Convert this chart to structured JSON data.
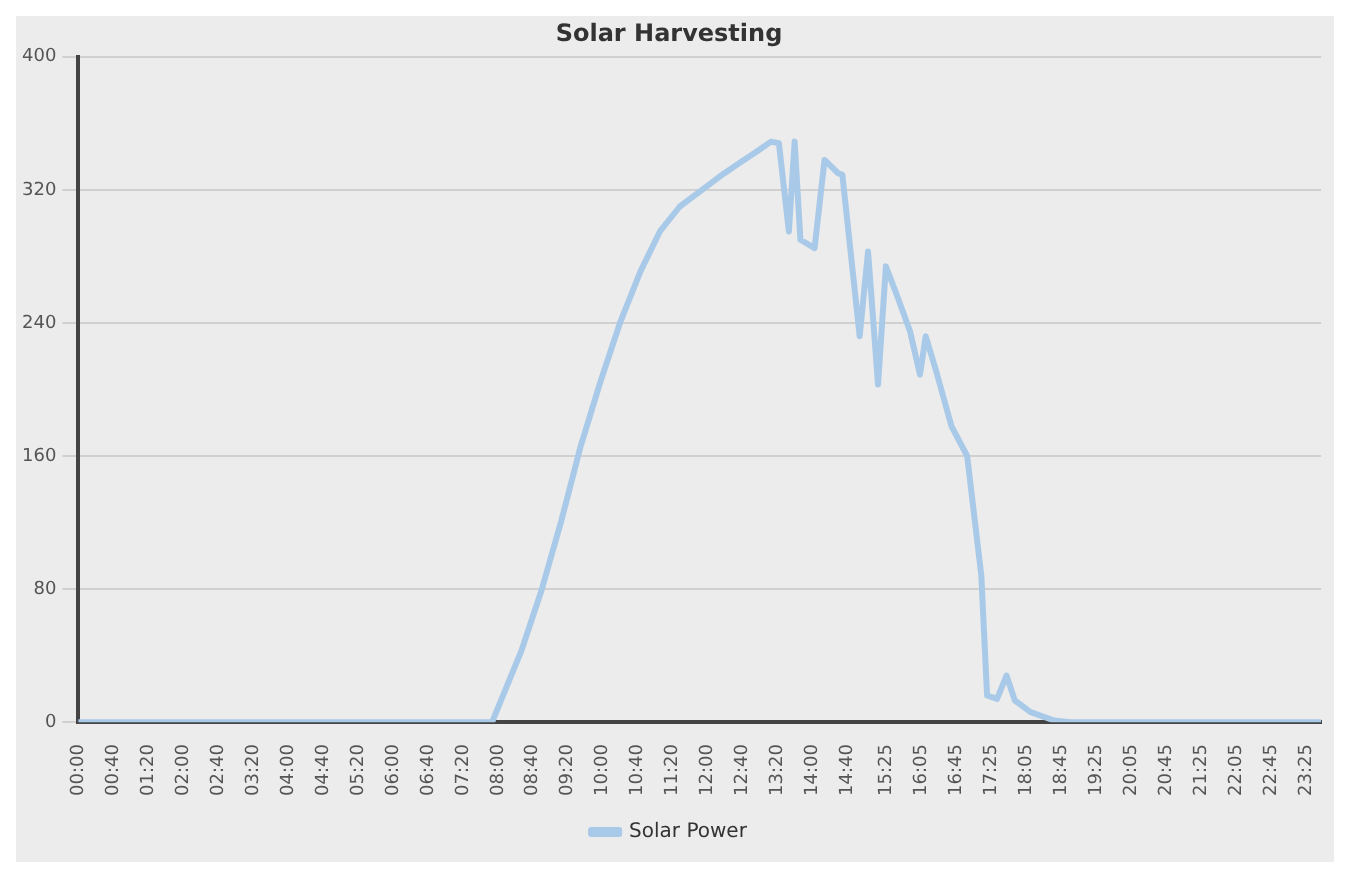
{
  "chart_data": {
    "type": "line",
    "title": "Solar Harvesting",
    "series": [
      {
        "name": "Solar Power",
        "color": "#a9c9e8",
        "x": [
          0,
          7.89,
          8.45,
          8.83,
          9.21,
          9.58,
          9.96,
          10.34,
          10.72,
          11.09,
          11.47,
          11.85,
          12.23,
          12.6,
          12.98,
          13.21,
          13.36,
          13.55,
          13.66,
          13.77,
          14.04,
          14.23,
          14.49,
          14.57,
          14.9,
          15.06,
          15.25,
          15.4,
          15.63,
          15.86,
          16.05,
          16.16,
          16.35,
          16.65,
          16.95,
          17.22,
          17.33,
          17.52,
          17.7,
          17.86,
          18.16,
          18.61,
          18.91,
          23.7
        ],
        "values": [
          0,
          0,
          43,
          79,
          121,
          166,
          205,
          241,
          271,
          295,
          310,
          319,
          328,
          336,
          344,
          349,
          348,
          295,
          349,
          290,
          285,
          338,
          330,
          329,
          232,
          283,
          203,
          274,
          255,
          235,
          209,
          232,
          212,
          178,
          160,
          88,
          16,
          14,
          28,
          13,
          6,
          1,
          0,
          0
        ]
      }
    ],
    "xlim": [
      0,
      23.7
    ],
    "xticks": [
      {
        "value": 0,
        "label": "00:00"
      },
      {
        "value": 0.6667,
        "label": "00:40"
      },
      {
        "value": 1.3333,
        "label": "01:20"
      },
      {
        "value": 2,
        "label": "02:00"
      },
      {
        "value": 2.6667,
        "label": "02:40"
      },
      {
        "value": 3.3333,
        "label": "03:20"
      },
      {
        "value": 4,
        "label": "04:00"
      },
      {
        "value": 4.6667,
        "label": "04:40"
      },
      {
        "value": 5.3333,
        "label": "05:20"
      },
      {
        "value": 6,
        "label": "06:00"
      },
      {
        "value": 6.6667,
        "label": "06:40"
      },
      {
        "value": 7.3333,
        "label": "07:20"
      },
      {
        "value": 8,
        "label": "08:00"
      },
      {
        "value": 8.6667,
        "label": "08:40"
      },
      {
        "value": 9.3333,
        "label": "09:20"
      },
      {
        "value": 10,
        "label": "10:00"
      },
      {
        "value": 10.6667,
        "label": "10:40"
      },
      {
        "value": 11.3333,
        "label": "11:20"
      },
      {
        "value": 12,
        "label": "12:00"
      },
      {
        "value": 12.6667,
        "label": "12:40"
      },
      {
        "value": 13.3333,
        "label": "13:20"
      },
      {
        "value": 14,
        "label": "14:00"
      },
      {
        "value": 14.6667,
        "label": "14:40"
      },
      {
        "value": 15.4167,
        "label": "15:25"
      },
      {
        "value": 16.0833,
        "label": "16:05"
      },
      {
        "value": 16.75,
        "label": "16:45"
      },
      {
        "value": 17.4167,
        "label": "17:25"
      },
      {
        "value": 18.0833,
        "label": "18:05"
      },
      {
        "value": 18.75,
        "label": "18:45"
      },
      {
        "value": 19.4167,
        "label": "19:25"
      },
      {
        "value": 20.0833,
        "label": "20:05"
      },
      {
        "value": 20.75,
        "label": "20:45"
      },
      {
        "value": 21.4167,
        "label": "21:25"
      },
      {
        "value": 22.0833,
        "label": "22:05"
      },
      {
        "value": 22.75,
        "label": "22:45"
      },
      {
        "value": 23.4167,
        "label": "23:25"
      }
    ],
    "ylim": [
      0,
      400
    ],
    "yticks": [
      0,
      80,
      160,
      240,
      320,
      400
    ],
    "grid": "y",
    "legend": "bottom",
    "marker": "none",
    "line_style": "solid"
  }
}
